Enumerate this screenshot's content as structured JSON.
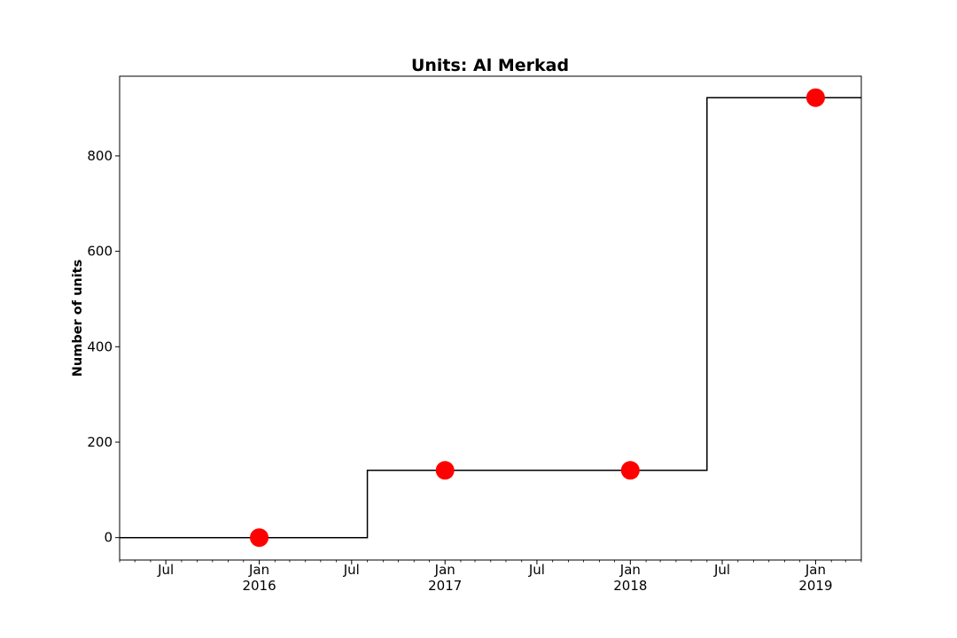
{
  "chart_data": {
    "type": "line",
    "drawstyle": "steps-post",
    "title": "Units: Al Merkad",
    "xlabel": "",
    "ylabel": "Number of units",
    "xlim": [
      "2015-04-01",
      "2019-04-01"
    ],
    "ylim": [
      -47,
      967
    ],
    "grid": false,
    "x_ticks": [
      {
        "date": "2015-07-01",
        "label": "Jul",
        "sublabel": ""
      },
      {
        "date": "2016-01-01",
        "label": "Jan",
        "sublabel": "2016"
      },
      {
        "date": "2016-07-01",
        "label": "Jul",
        "sublabel": ""
      },
      {
        "date": "2017-01-01",
        "label": "Jan",
        "sublabel": "2017"
      },
      {
        "date": "2017-07-01",
        "label": "Jul",
        "sublabel": ""
      },
      {
        "date": "2018-01-01",
        "label": "Jan",
        "sublabel": "2018"
      },
      {
        "date": "2018-07-01",
        "label": "Jul",
        "sublabel": ""
      },
      {
        "date": "2019-01-01",
        "label": "Jan",
        "sublabel": "2019"
      }
    ],
    "y_ticks": [
      0,
      200,
      400,
      600,
      800
    ],
    "step_series": {
      "color": "#000000",
      "x": [
        "2015-04-01",
        "2016-08-01",
        "2018-06-01",
        "2019-04-01"
      ],
      "y": [
        0,
        141,
        922,
        922
      ]
    },
    "marker_series": {
      "color": "#ff0000",
      "x": [
        "2016-01-01",
        "2017-01-01",
        "2018-01-01",
        "2019-01-01"
      ],
      "y": [
        0,
        141,
        141,
        922
      ]
    }
  }
}
